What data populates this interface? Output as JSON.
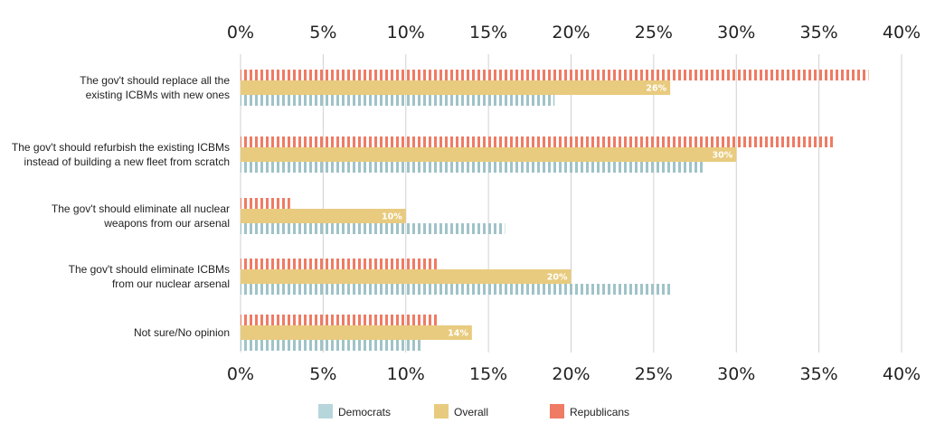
{
  "chart_data": {
    "type": "bar",
    "orientation": "horizontal",
    "categories": [
      [
        "The gov't should replace all the",
        "existing ICBMs with new ones"
      ],
      [
        "The gov't should refurbish the existing ICBMs",
        "instead of building a new fleet from scratch"
      ],
      [
        "The gov't should eliminate all nuclear",
        "weapons from our arsenal"
      ],
      [
        "The gov't should eliminate ICBMs",
        "from our nuclear arsenal"
      ],
      [
        "Not sure/No opinion"
      ]
    ],
    "series": [
      {
        "name": "Republicans",
        "color": "#ef7b64",
        "pattern": "striped",
        "values": [
          38,
          36,
          3,
          12,
          12
        ]
      },
      {
        "name": "Overall",
        "color": "#e8cb7e",
        "pattern": "solid",
        "values": [
          26,
          30,
          10,
          20,
          14
        ],
        "labels": [
          "26%",
          "30%",
          "10%",
          "20%",
          "14%"
        ]
      },
      {
        "name": "Democrats",
        "color": "#9fc3c8",
        "pattern": "striped",
        "values": [
          19,
          28,
          16,
          26,
          11
        ]
      }
    ],
    "xlim": [
      0,
      40
    ],
    "x_ticks": [
      "0%",
      "5%",
      "10%",
      "15%",
      "20%",
      "25%",
      "30%",
      "35%",
      "40%"
    ],
    "axis_top": true,
    "axis_bottom": true,
    "grid": true,
    "legend": {
      "placement": "bottom",
      "entries": [
        {
          "name": "Democrats",
          "color": "#b6d6dc"
        },
        {
          "name": "Overall",
          "color": "#e8cb7e"
        },
        {
          "name": "Republicans",
          "color": "#ef7b64"
        }
      ]
    },
    "title": "",
    "xlabel": "",
    "ylabel": ""
  }
}
